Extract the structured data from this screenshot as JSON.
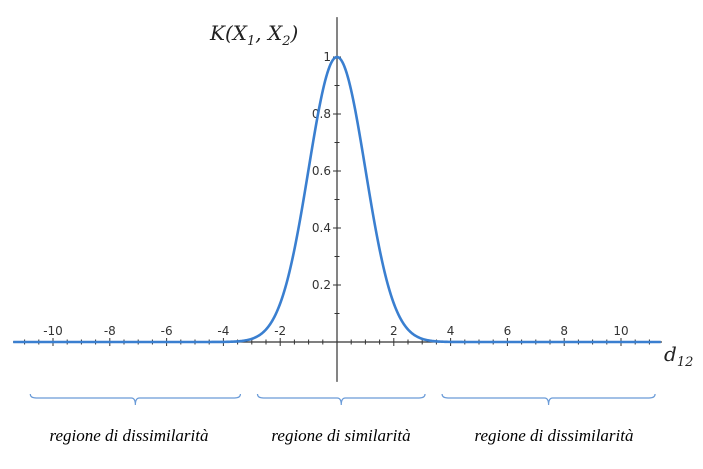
{
  "chart_data": {
    "type": "line",
    "title": "",
    "ylabel_main": "K(X",
    "ylabel_sub1": "1",
    "ylabel_mid": ", X",
    "ylabel_sub2": "2",
    "ylabel_end": ")",
    "xlabel_main": "d",
    "xlabel_sub": "12",
    "xlim": [
      -11.3,
      11.3
    ],
    "ylim": [
      -0.14,
      1.14
    ],
    "grid": false,
    "x_ticks": [
      -10,
      -8,
      -6,
      -4,
      -2,
      2,
      4,
      6,
      8,
      10
    ],
    "x_tick_labels": [
      "-10",
      "-8",
      "-6",
      "-4",
      "-2",
      "2",
      "4",
      "6",
      "8",
      "10"
    ],
    "y_ticks": [
      0.2,
      0.4,
      0.6,
      0.8,
      1
    ],
    "y_tick_labels": [
      "0.2",
      "0.4",
      "0.6",
      "0.8",
      "1"
    ],
    "series": [
      {
        "function": "exp(-x^2/2)",
        "x": [
          -11,
          -10,
          -9,
          -8,
          -7,
          -6,
          -5,
          -4,
          -3.5,
          -3,
          -2.75,
          -2.5,
          -2.25,
          -2,
          -1.75,
          -1.5,
          -1.25,
          -1,
          -0.75,
          -0.5,
          -0.25,
          0,
          0.25,
          0.5,
          0.75,
          1,
          1.25,
          1.5,
          1.75,
          2,
          2.25,
          2.5,
          2.75,
          3,
          3.5,
          4,
          5,
          6,
          7,
          8,
          9,
          10,
          11
        ],
        "y": [
          0,
          0,
          0,
          0,
          0,
          0,
          0,
          0.0003,
          0.0022,
          0.0111,
          0.0228,
          0.0439,
          0.0796,
          0.1353,
          0.2163,
          0.3247,
          0.4578,
          0.6065,
          0.7548,
          0.8825,
          0.9692,
          1,
          0.9692,
          0.8825,
          0.7548,
          0.6065,
          0.4578,
          0.3247,
          0.2163,
          0.1353,
          0.0796,
          0.0439,
          0.0228,
          0.0111,
          0.0022,
          0.0003,
          0,
          0,
          0,
          0,
          0,
          0,
          0
        ]
      }
    ],
    "regions": [
      {
        "label": "regione di dissimilarità",
        "from": -10.8,
        "to": -3.4
      },
      {
        "label": "regione di similarità",
        "from": -2.8,
        "to": 3.1
      },
      {
        "label": "regione di dissimilarità",
        "from": 3.7,
        "to": 11.2
      }
    ]
  },
  "colors": {
    "curve": "#3a7fd0",
    "axis": "#333333",
    "bracket": "#6a9bd8"
  }
}
